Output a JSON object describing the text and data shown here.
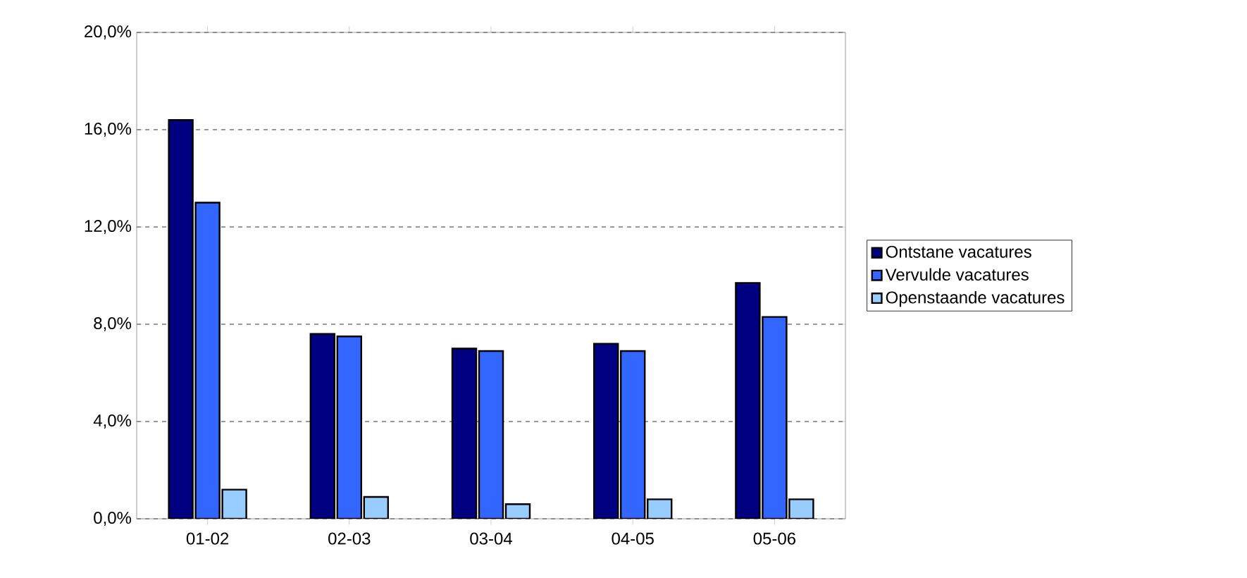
{
  "chart_data": {
    "type": "bar",
    "categories": [
      "01-02",
      "02-03",
      "03-04",
      "04-05",
      "05-06"
    ],
    "series": [
      {
        "name": "Ontstane vacatures",
        "color": "#000080",
        "values": [
          16.4,
          7.6,
          7.0,
          7.2,
          9.7
        ]
      },
      {
        "name": "Vervulde vacatures",
        "color": "#3366ff",
        "values": [
          13.0,
          7.5,
          6.9,
          6.9,
          8.3
        ]
      },
      {
        "name": "Openstaande vacatures",
        "color": "#99ccff",
        "values": [
          1.2,
          0.9,
          0.6,
          0.8,
          0.8
        ]
      }
    ],
    "ylim": [
      0,
      20
    ],
    "yticks": [
      {
        "value": 0,
        "label": "0,0%"
      },
      {
        "value": 4,
        "label": "4,0%"
      },
      {
        "value": 8,
        "label": "8,0%"
      },
      {
        "value": 12,
        "label": "12,0%"
      },
      {
        "value": 16,
        "label": "16,0%"
      },
      {
        "value": 20,
        "label": "20,0%"
      }
    ],
    "grid": "y",
    "legend": "right"
  }
}
